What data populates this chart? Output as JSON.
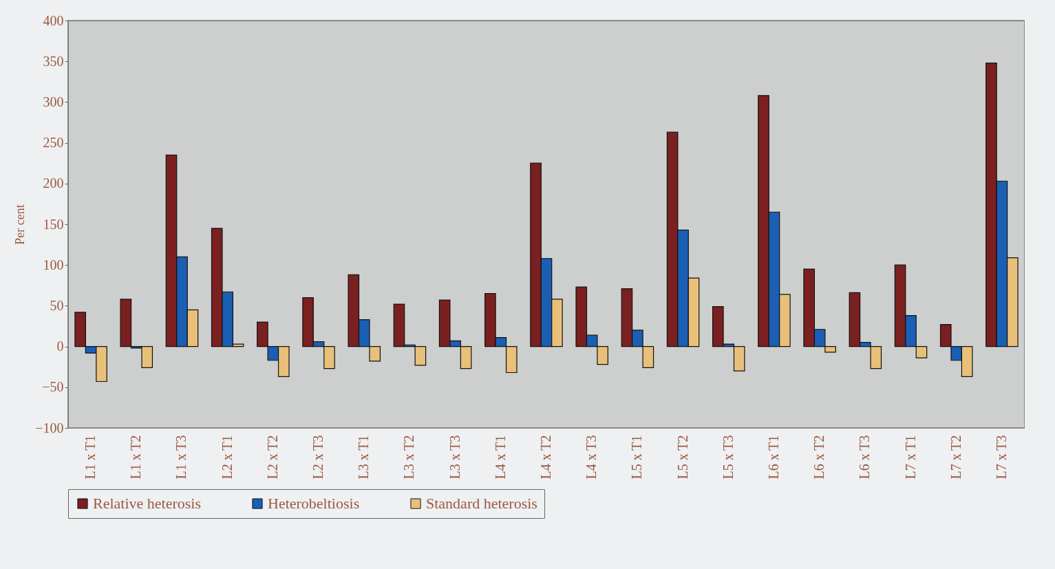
{
  "chart_data": {
    "type": "bar",
    "ylabel": "Per cent",
    "categories": [
      "L1 x T1",
      "L1 x T2",
      "L1 x T3",
      "L2 x T1",
      "L2 x T2",
      "L2 x T3",
      "L3 x T1",
      "L3 x T2",
      "L3 x T3",
      "L4 x T1",
      "L4 x T2",
      "L4 x T3",
      "L5 x T1",
      "L5 x T2",
      "L5 x T3",
      "L6 x T1",
      "L6 x T2",
      "L6 x T3",
      "L7 x T1",
      "L7 x T2",
      "L7 x T3"
    ],
    "series": [
      {
        "name": "Relative heterosis",
        "color": "#7b2020",
        "values": [
          42,
          58,
          235,
          145,
          30,
          60,
          88,
          52,
          57,
          65,
          225,
          73,
          71,
          263,
          49,
          308,
          95,
          66,
          100,
          27,
          348
        ]
      },
      {
        "name": "Heterobeltiosis",
        "color": "#1a5fb4",
        "values": [
          -8,
          -2,
          110,
          67,
          -17,
          6,
          33,
          2,
          7,
          11,
          108,
          14,
          20,
          143,
          3,
          165,
          21,
          5,
          38,
          -17,
          203
        ]
      },
      {
        "name": "Standard heterosis",
        "color": "#e8c07a",
        "values": [
          -43,
          -26,
          45,
          3,
          -37,
          -27,
          -18,
          -23,
          -27,
          -32,
          58,
          -22,
          -26,
          84,
          -30,
          64,
          -7,
          -27,
          -14,
          -37,
          109
        ]
      }
    ],
    "ylim": [
      -100,
      400
    ],
    "yticks": [
      -100,
      -50,
      0,
      50,
      100,
      150,
      200,
      250,
      300,
      350,
      400
    ],
    "grid": false,
    "legend": "bottom"
  }
}
